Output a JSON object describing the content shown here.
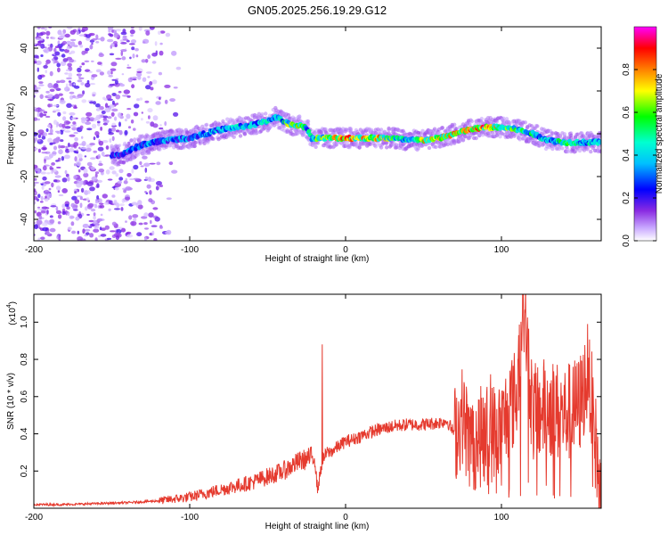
{
  "title": "GN05.2025.256.19.29.G12",
  "colors": {
    "snr_line": "#e53a2e",
    "axes": "#000000"
  },
  "chart_data": [
    {
      "type": "heatmap",
      "name": "spectrogram",
      "xlabel": "Height of straight line (km)",
      "ylabel": "Frequency (Hz)",
      "xlim": [
        -200,
        164
      ],
      "ylim": [
        -50,
        50
      ],
      "xticks": [
        -200,
        -100,
        0,
        100
      ],
      "xtick_labels": [
        "-200",
        "-100",
        "0",
        "100"
      ],
      "yticks": [
        40,
        20,
        0,
        -20,
        -40
      ],
      "ytick_labels": [
        "40",
        "20",
        "0",
        "-20",
        "-40"
      ],
      "colorbar": {
        "label": "Normalized spectral amplitude",
        "range": [
          0,
          1
        ],
        "ticks": [
          0.0,
          0.2,
          0.4,
          0.6,
          0.8
        ],
        "tick_labels": [
          "0.0",
          "0.2",
          "0.4",
          "0.6",
          "0.8"
        ],
        "colors": [
          "#ffffff",
          "#c9a9ff",
          "#8a2be2",
          "#0000ff",
          "#00bfff",
          "#00ffd0",
          "#00ff00",
          "#ffff00",
          "#ff8000",
          "#ff0000",
          "#ff00ff"
        ]
      },
      "ridge": {
        "x": [
          -145,
          -130,
          -115,
          -100,
          -90,
          -80,
          -70,
          -60,
          -50,
          -45,
          -40,
          -35,
          -30,
          -25,
          -22,
          -20,
          -10,
          0,
          10,
          20,
          30,
          40,
          50,
          60,
          70,
          80,
          90,
          100,
          110,
          120,
          130,
          140,
          150,
          164
        ],
        "freq": [
          -10,
          -5,
          -3,
          -2,
          0,
          2,
          3,
          4,
          6,
          8,
          6,
          4,
          4,
          3,
          -2,
          -2,
          -2,
          -2,
          -2,
          -2,
          -2,
          -3,
          -3,
          -2,
          0,
          2,
          3,
          3,
          2,
          0,
          -3,
          -4,
          -4,
          -4
        ],
        "amp": [
          0.35,
          0.4,
          0.45,
          0.4,
          0.45,
          0.45,
          0.5,
          0.5,
          0.5,
          0.45,
          0.55,
          0.7,
          0.8,
          0.5,
          0.5,
          0.6,
          0.7,
          0.85,
          0.75,
          0.85,
          0.6,
          0.55,
          0.75,
          0.7,
          0.8,
          0.8,
          0.9,
          0.7,
          0.6,
          0.55,
          0.5,
          0.6,
          0.5,
          0.5
        ]
      }
    },
    {
      "type": "line",
      "name": "snr",
      "xlabel": "Height of straight line (km)",
      "ylabel": "SNR (10 * v/v)",
      "scale_label": "(x10",
      "scale_exponent": "4",
      "scale_suffix": ")",
      "xlim": [
        -200,
        164
      ],
      "ylim": [
        0,
        1.15
      ],
      "xticks": [
        -200,
        -100,
        0,
        100
      ],
      "xtick_labels": [
        "-200",
        "-100",
        "0",
        "100"
      ],
      "yticks": [
        1.0,
        0.8,
        0.6,
        0.4,
        0.2
      ],
      "ytick_labels": [
        "1.0",
        "0.8",
        "0.6",
        "0.4",
        "0.2"
      ],
      "x": [
        -200,
        -180,
        -160,
        -140,
        -120,
        -110,
        -100,
        -90,
        -80,
        -70,
        -60,
        -50,
        -40,
        -30,
        -20,
        -18,
        -15,
        -12,
        -10,
        -5,
        0,
        5,
        10,
        20,
        30,
        40,
        50,
        60,
        65,
        70,
        75,
        80,
        90,
        100,
        105,
        110,
        114,
        120,
        130,
        140,
        150,
        156,
        164
      ],
      "y": [
        0.02,
        0.02,
        0.025,
        0.03,
        0.04,
        0.05,
        0.06,
        0.08,
        0.1,
        0.12,
        0.14,
        0.17,
        0.2,
        0.25,
        0.28,
        0.1,
        0.25,
        0.3,
        0.3,
        0.33,
        0.36,
        0.37,
        0.39,
        0.42,
        0.44,
        0.45,
        0.45,
        0.46,
        0.47,
        0.4,
        0.5,
        0.35,
        0.4,
        0.42,
        0.55,
        0.6,
        1.15,
        0.5,
        0.55,
        0.5,
        0.55,
        0.75,
        0.02
      ],
      "spikes": [
        {
          "x": -15,
          "y": 0.88
        },
        {
          "x": 114,
          "y": 1.15
        },
        {
          "x": 111,
          "y": 0.93
        },
        {
          "x": 156,
          "y": 0.81
        },
        {
          "x": 146,
          "y": 0.76
        },
        {
          "x": 128,
          "y": 0.74
        },
        {
          "x": 93,
          "y": 0.72
        }
      ]
    }
  ]
}
